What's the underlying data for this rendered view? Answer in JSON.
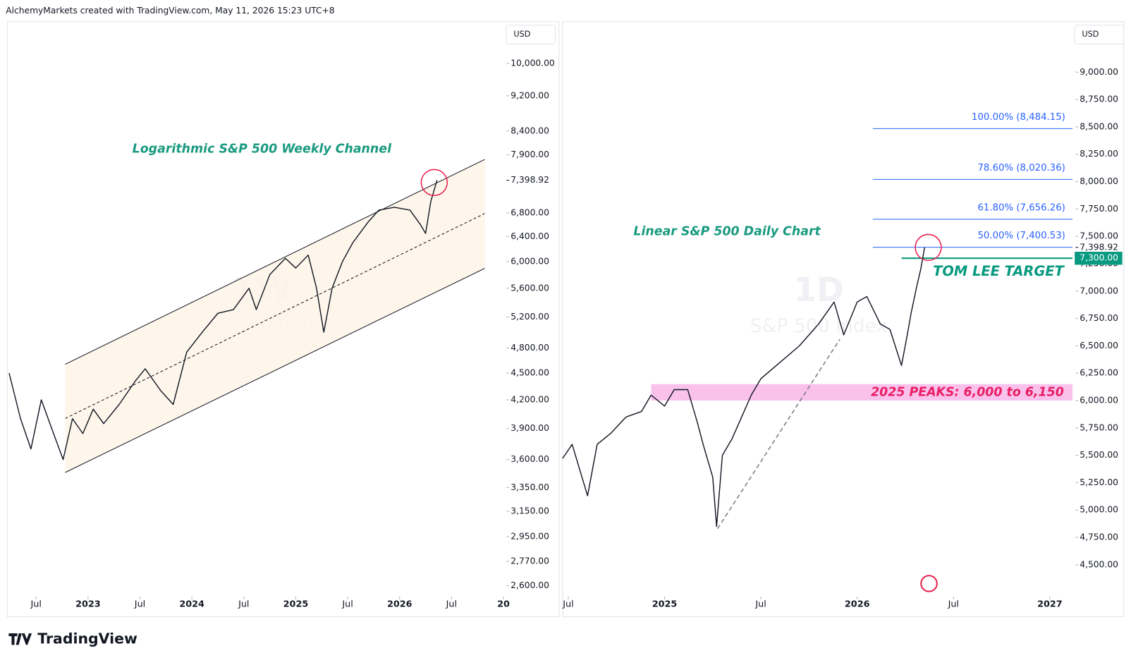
{
  "header": "AlchemyMarkets created with TradingView.com, May 11, 2026 15:23 UTC+8",
  "footer": "TradingView",
  "chart_data": [
    {
      "type": "line",
      "title": "Logarithmic S&P 500 Weekly Channel",
      "currency": "USD",
      "watermark": [
        "1W",
        "S&P 500 Index"
      ],
      "log_scale": true,
      "color": "#131722",
      "xlim": [
        2022.236,
        2027.014
      ],
      "ylim": [
        2538,
        11097
      ],
      "xticks": [
        {
          "value": 2022.5,
          "label": "Jul"
        },
        2023,
        {
          "value": 2023.5,
          "label": "Jul"
        },
        2024,
        {
          "value": 2024.5,
          "label": "Jul"
        },
        2025,
        {
          "value": 2025.5,
          "label": "Jul"
        },
        2026,
        {
          "value": 2026.5,
          "label": "Jul"
        },
        {
          "value": 2027,
          "label": "20"
        }
      ],
      "yticks": [
        {
          "value": 10000,
          "label": "10,000.00"
        },
        {
          "value": 9200,
          "label": "9,200.00"
        },
        {
          "value": 8400,
          "label": "8,400.00"
        },
        {
          "value": 7900,
          "label": "7,900.00"
        },
        {
          "value": 6800,
          "label": "6,800.00"
        },
        {
          "value": 6400,
          "label": "6,400.00"
        },
        {
          "value": 6000,
          "label": "6,000.00"
        },
        {
          "value": 5600,
          "label": "5,600.00"
        },
        {
          "value": 5200,
          "label": "5,200.00"
        },
        {
          "value": 4800,
          "label": "4,800.00"
        },
        {
          "value": 4500,
          "label": "4,500.00"
        },
        {
          "value": 4200,
          "label": "4,200.00"
        },
        {
          "value": 3900,
          "label": "3,900.00"
        },
        {
          "value": 3600,
          "label": "3,600.00"
        },
        {
          "value": 3350,
          "label": "3,350.00"
        },
        {
          "value": 3150,
          "label": "3,150.00"
        },
        {
          "value": 2950,
          "label": "2,950.00"
        },
        {
          "value": 2770,
          "label": "2,770.00"
        },
        {
          "value": 2600,
          "label": "2,600.00"
        }
      ],
      "last_price": {
        "value": 7398.92,
        "label": "7,398.92"
      },
      "series": [
        {
          "name": "S&P 500",
          "x": [
            2022.24,
            2022.35,
            2022.45,
            2022.55,
            2022.65,
            2022.76,
            2022.85,
            2022.95,
            2023.05,
            2023.15,
            2023.3,
            2023.45,
            2023.55,
            2023.7,
            2023.82,
            2023.95,
            2024.1,
            2024.25,
            2024.4,
            2024.55,
            2024.62,
            2024.75,
            2024.9,
            2025.0,
            2025.12,
            2025.2,
            2025.27,
            2025.35,
            2025.45,
            2025.55,
            2025.7,
            2025.8,
            2025.95,
            2026.1,
            2026.2,
            2026.25,
            2026.3,
            2026.36
          ],
          "values": [
            4500,
            4000,
            3700,
            4200,
            3900,
            3600,
            4000,
            3850,
            4100,
            3950,
            4150,
            4400,
            4550,
            4300,
            4150,
            4750,
            5000,
            5250,
            5300,
            5600,
            5300,
            5800,
            6050,
            5900,
            6100,
            5600,
            5000,
            5600,
            6000,
            6300,
            6650,
            6850,
            6900,
            6850,
            6600,
            6450,
            7000,
            7398.92
          ]
        }
      ],
      "channel": {
        "x": [
          2022.78,
          2026.82
        ],
        "upper": [
          4603,
          7807
        ],
        "middle": [
          4003,
          6791
        ],
        "lower": [
          3482,
          5895
        ]
      }
    },
    {
      "type": "line",
      "title": "Linear S&P 500 Daily Chart",
      "currency": "USD",
      "watermark": [
        "1D",
        "S&P 500 Index"
      ],
      "log_scale": false,
      "color": "#131722",
      "xlim": [
        2024.478,
        2027.118
      ],
      "ylim": [
        4223,
        9448
      ],
      "xticks": [
        {
          "value": 2024.5,
          "label": "Jul"
        },
        2025,
        {
          "value": 2025.5,
          "label": "Jul"
        },
        2026,
        {
          "value": 2026.5,
          "label": "Jul"
        },
        2027
      ],
      "yticks": [
        {
          "value": 4500,
          "label": "4,500.00"
        },
        {
          "value": 4750,
          "label": "4,750.00"
        },
        {
          "value": 5000,
          "label": "5,000.00"
        },
        {
          "value": 5250,
          "label": "5,250.00"
        },
        {
          "value": 5500,
          "label": "5,500.00"
        },
        {
          "value": 5750,
          "label": "5,750.00"
        },
        {
          "value": 6000,
          "label": "6,000.00"
        },
        {
          "value": 6250,
          "label": "6,250.00"
        },
        {
          "value": 6500,
          "label": "6,500.00"
        },
        {
          "value": 6750,
          "label": "6,750.00"
        },
        {
          "value": 7000,
          "label": "7,000.00"
        },
        {
          "value": 7250,
          "label": "7,250.00"
        },
        {
          "value": 7500,
          "label": "7,500.00"
        },
        {
          "value": 7750,
          "label": "7,750.00"
        },
        {
          "value": 8000,
          "label": "8,000.00"
        },
        {
          "value": 8250,
          "label": "8,250.00"
        },
        {
          "value": 8500,
          "label": "8,500.00"
        },
        {
          "value": 8750,
          "label": "8,750.00"
        },
        {
          "value": 9000,
          "label": "9,000.00"
        }
      ],
      "last_price": {
        "value": 7398.92,
        "label": "7,398.92"
      },
      "series": [
        {
          "name": "S&P 500",
          "x": [
            2024.47,
            2024.52,
            2024.6,
            2024.65,
            2024.72,
            2024.8,
            2024.88,
            2024.93,
            2025.0,
            2025.05,
            2025.12,
            2025.17,
            2025.2,
            2025.25,
            2025.27,
            2025.3,
            2025.35,
            2025.4,
            2025.45,
            2025.5,
            2025.6,
            2025.7,
            2025.8,
            2025.88,
            2025.93,
            2026.0,
            2026.05,
            2026.12,
            2026.17,
            2026.23,
            2026.26,
            2026.28,
            2026.31,
            2026.33,
            2026.35
          ],
          "values": [
            5470,
            5600,
            5130,
            5600,
            5700,
            5850,
            5900,
            6050,
            5950,
            6100,
            6100,
            5800,
            5600,
            5300,
            4850,
            5500,
            5650,
            5850,
            6050,
            6200,
            6350,
            6500,
            6700,
            6900,
            6600,
            6900,
            6950,
            6700,
            6650,
            6320,
            6600,
            6800,
            7050,
            7200,
            7398.92
          ]
        }
      ],
      "fib_levels": [
        {
          "value": 8484.15,
          "label": "100.00% (8,484.15)"
        },
        {
          "value": 8020.36,
          "label": "78.60% (8,020.36)"
        },
        {
          "value": 7656.26,
          "label": "61.80% (7,656.26)"
        },
        {
          "value": 7400.53,
          "label": "50.00% (7,400.53)"
        }
      ],
      "target": {
        "value": 7300,
        "label": "7,300.00",
        "text": "TOM LEE TARGET"
      },
      "zone": {
        "from": 6000,
        "to": 6150,
        "label": "2025 PEAKS: 6,000 to 6,150"
      },
      "trend_line": {
        "x": [
          2025.275,
          2025.91
        ],
        "y": [
          4830,
          6560
        ]
      }
    }
  ]
}
